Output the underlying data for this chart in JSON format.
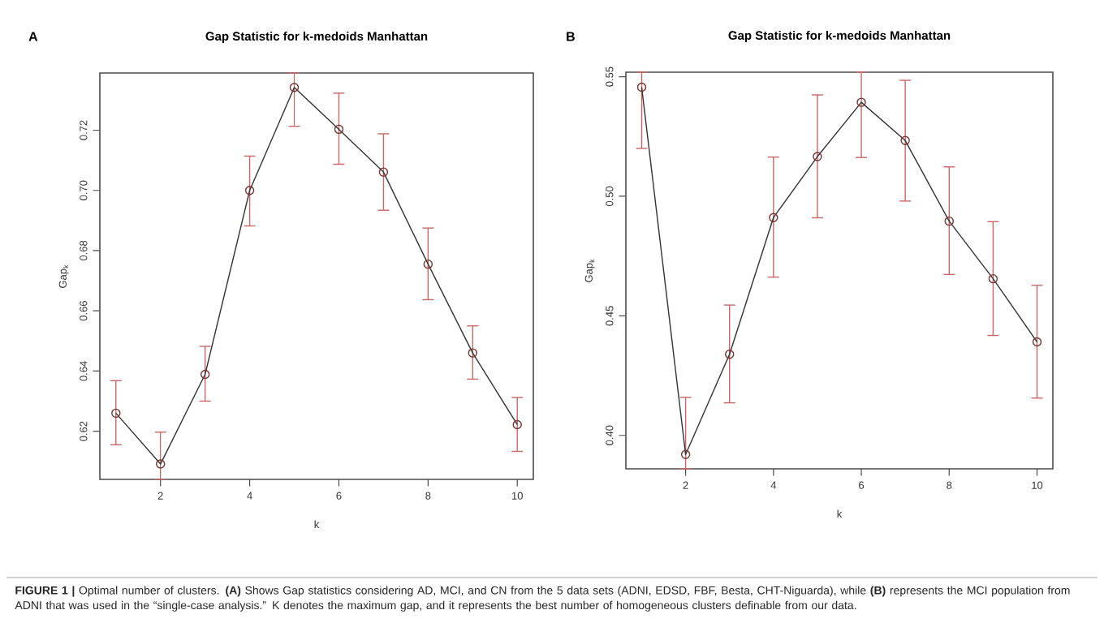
{
  "chart_data": [
    {
      "type": "line",
      "title": "Gap Statistic for k-medoids Manhattan",
      "xlabel": "k",
      "ylabel": "Gap$_{k}$",
      "marker": "circle",
      "line_style": "solid",
      "x": [
        1,
        2,
        3,
        4,
        5,
        6,
        7,
        8,
        9,
        10
      ],
      "series": [
        {
          "color": "#333333",
          "values": [
            0.626,
            0.6091,
            0.6389,
            0.7,
            0.7342,
            0.7203,
            0.7061,
            0.6755,
            0.646,
            0.6222
          ],
          "errors": [
            [
              0.6155,
              0.6368
            ],
            [
              0.604,
              0.6197
            ],
            [
              0.63,
              0.6482
            ],
            [
              0.6882,
              0.7114
            ],
            [
              0.7213,
              0.739
            ],
            [
              0.7087,
              0.7323
            ],
            [
              0.6934,
              0.7188
            ],
            [
              0.6637,
              0.6875
            ],
            [
              0.6373,
              0.655
            ],
            [
              0.6133,
              0.6312
            ]
          ]
        }
      ],
      "xlim": [
        0.64,
        10.36
      ],
      "ylim": [
        0.604,
        0.739
      ],
      "xticks": [
        2,
        4,
        6,
        8,
        10
      ],
      "yticks": [
        {
          "value": 0.62,
          "label": "0.62"
        },
        {
          "value": 0.64,
          "label": "0.64"
        },
        {
          "value": 0.66,
          "label": "0.66"
        },
        {
          "value": 0.68,
          "label": "0.68"
        },
        {
          "value": 0.7,
          "label": "0.70"
        },
        {
          "value": 0.72,
          "label": "0.72"
        }
      ],
      "annotations": [
        "A"
      ]
    },
    {
      "type": "line",
      "title": "Gap Statistic for k-medoids Manhattan",
      "xlabel": "k",
      "ylabel": "Gap$_{k}$",
      "marker": "circle",
      "line_style": "solid",
      "x": [
        1,
        2,
        3,
        4,
        5,
        6,
        7,
        8,
        9,
        10
      ],
      "series": [
        {
          "color": "#333333",
          "values": [
            0.5456,
            0.392,
            0.4339,
            0.4911,
            0.5166,
            0.5393,
            0.5233,
            0.4896,
            0.4655,
            0.4391
          ],
          "errors": [
            [
              0.52,
              0.5519
            ],
            [
              0.386,
              0.4159
            ],
            [
              0.4136,
              0.4545
            ],
            [
              0.4662,
              0.5164
            ],
            [
              0.491,
              0.5424
            ],
            [
              0.5162,
              0.5519
            ],
            [
              0.498,
              0.5485
            ],
            [
              0.4673,
              0.5123
            ],
            [
              0.4418,
              0.4894
            ],
            [
              0.4156,
              0.4628
            ]
          ]
        }
      ],
      "xlim": [
        0.64,
        10.36
      ],
      "ylim": [
        0.386,
        0.5519
      ],
      "xticks": [
        2,
        4,
        6,
        8,
        10
      ],
      "yticks": [
        {
          "value": 0.4,
          "label": "0.40"
        },
        {
          "value": 0.45,
          "label": "0.45"
        },
        {
          "value": 0.5,
          "label": "0.50"
        },
        {
          "value": 0.55,
          "label": "0.55"
        }
      ],
      "annotations": [
        "B",
        "**FIGURE 1 |** Optimal number of clusters. **(A)** Shows Gap statistics considering AD, MCI, and CN from the 5 data sets (ADNI, EDSD, FBF, Besta, CHT-Niguarda), while **(B)** represents the MCI population from ADNI that was used in the “single-case analysis.” K denotes the maximum gap, and it represents the best number of homogeneous clusters definable from our data."
      ]
    }
  ]
}
